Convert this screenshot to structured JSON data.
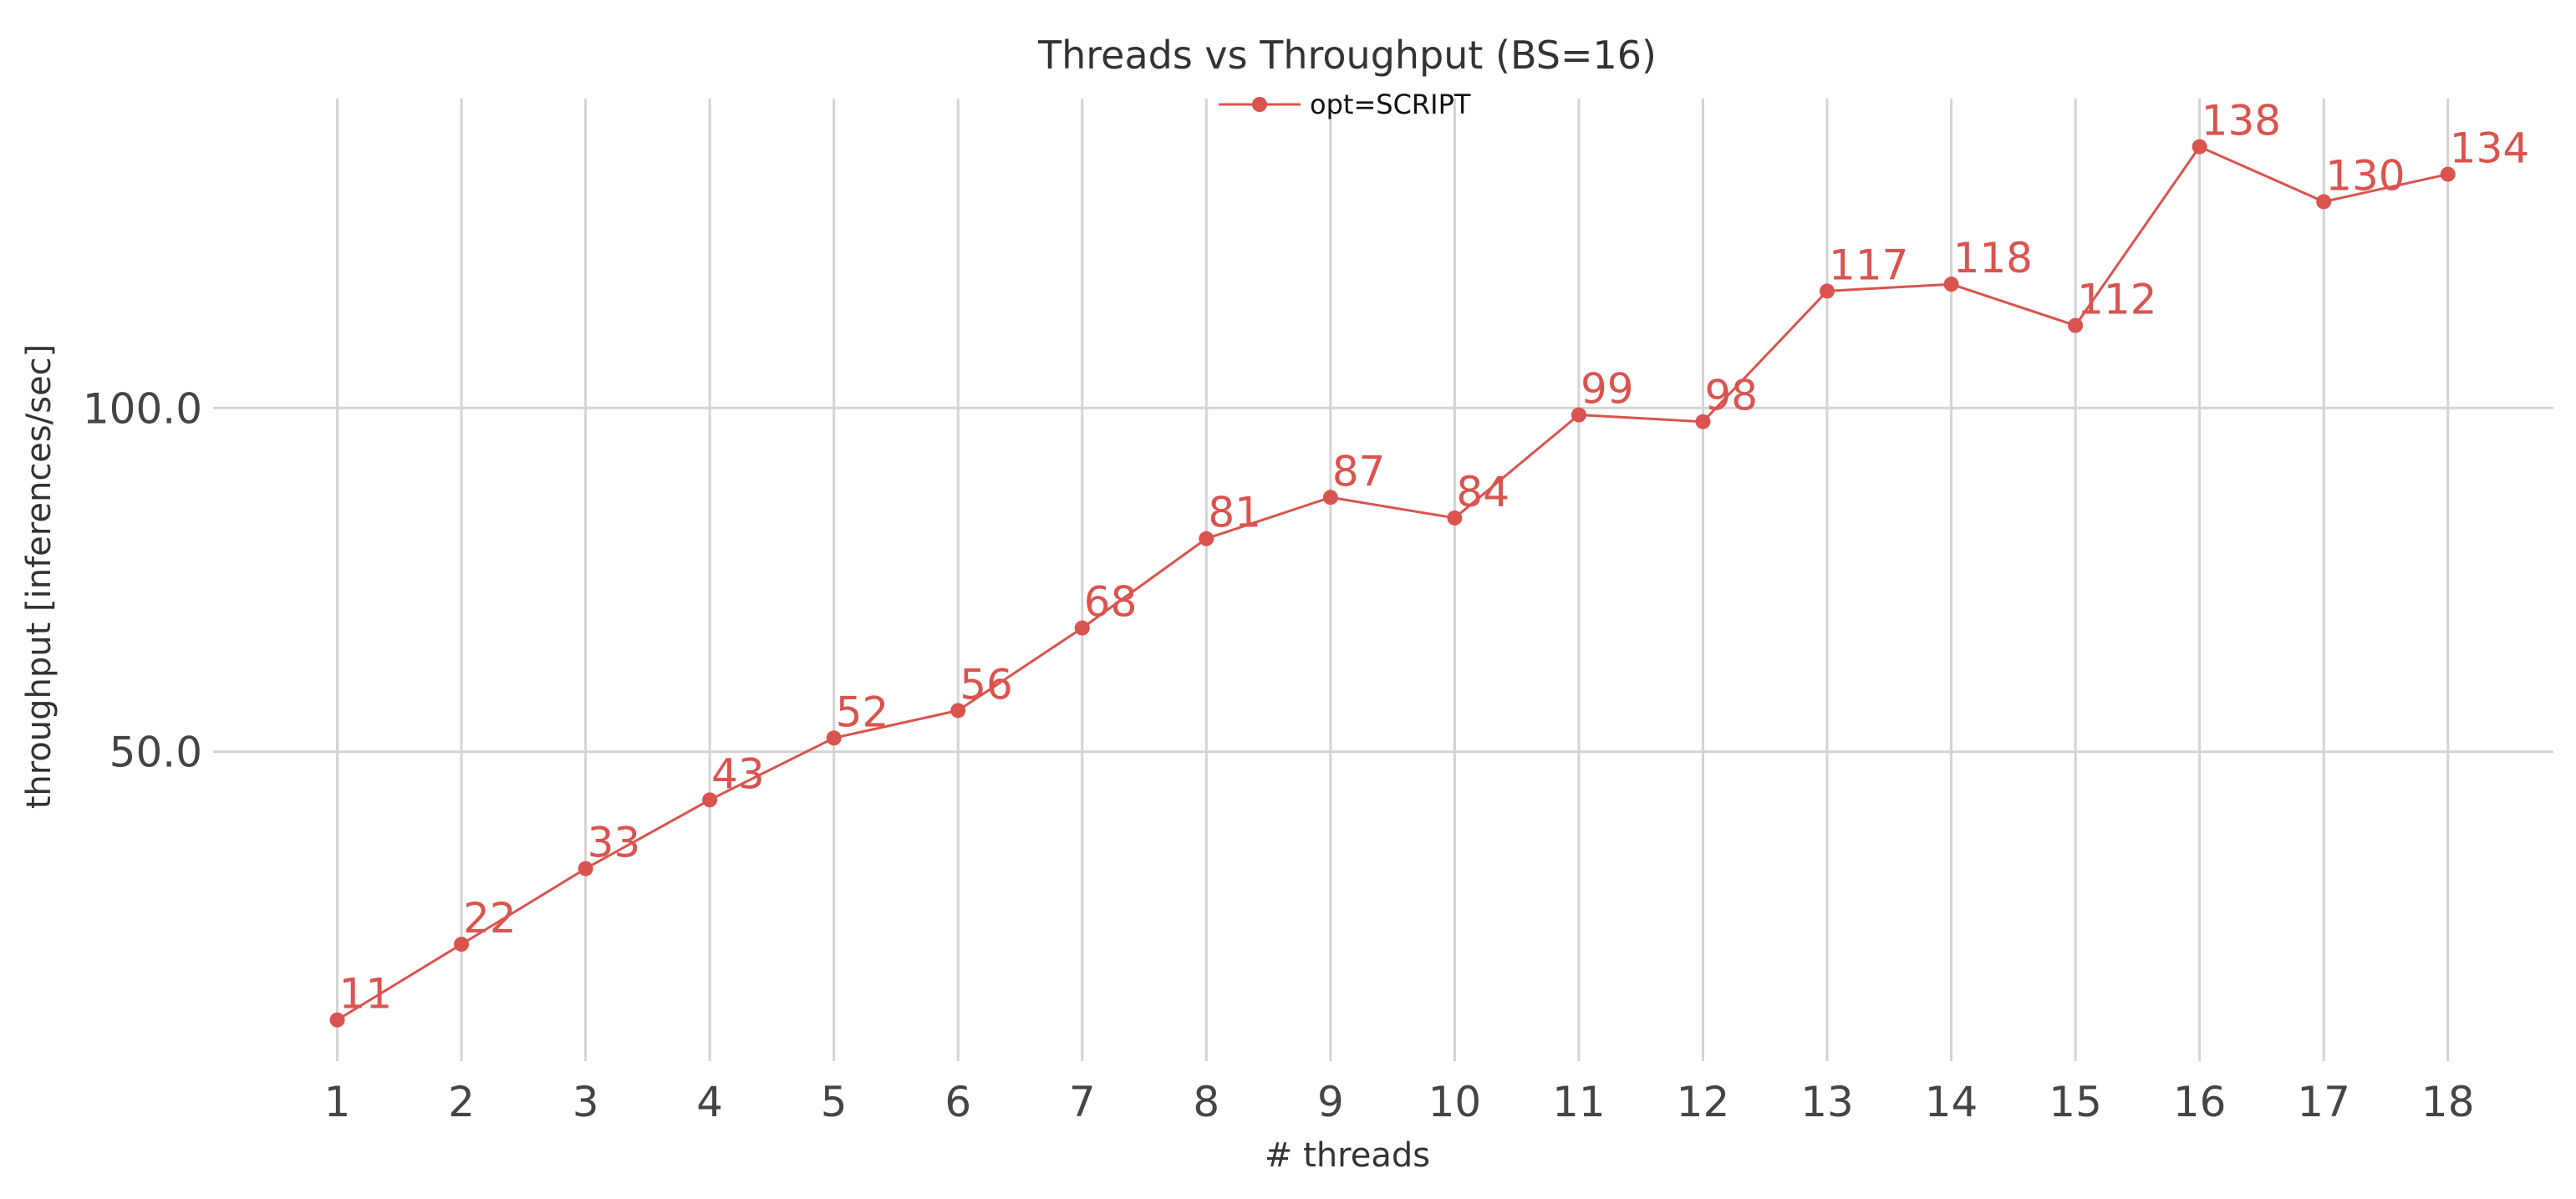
{
  "chart_data": {
    "type": "line",
    "title": "Threads vs Throughput (BS=16)",
    "xlabel": "# threads",
    "ylabel": "throughput [inferences/sec]",
    "x": [
      1,
      2,
      3,
      4,
      5,
      6,
      7,
      8,
      9,
      10,
      11,
      12,
      13,
      14,
      15,
      16,
      17,
      18
    ],
    "x_tick_labels": [
      "1",
      "2",
      "3",
      "4",
      "5",
      "6",
      "7",
      "8",
      "9",
      "10",
      "11",
      "12",
      "13",
      "14",
      "15",
      "16",
      "17",
      "18"
    ],
    "y_ticks": [
      50,
      100
    ],
    "y_tick_labels": [
      "50.0",
      "100.0"
    ],
    "ylim": [
      5,
      145
    ],
    "xlim": [
      0,
      18.85
    ],
    "grid": true,
    "legend_position": "top-center",
    "series": [
      {
        "name": "opt=SCRIPT",
        "color": "#d9534f",
        "values": [
          11,
          22,
          33,
          43,
          52,
          56,
          68,
          81,
          87,
          84,
          99,
          98,
          117,
          118,
          112,
          138,
          130,
          134
        ],
        "labels": [
          "11",
          "22",
          "33",
          "43",
          "52",
          "56",
          "68",
          "81",
          "87",
          "84",
          "99",
          "98",
          "117",
          "118",
          "112",
          "138",
          "130",
          "134"
        ]
      }
    ]
  }
}
